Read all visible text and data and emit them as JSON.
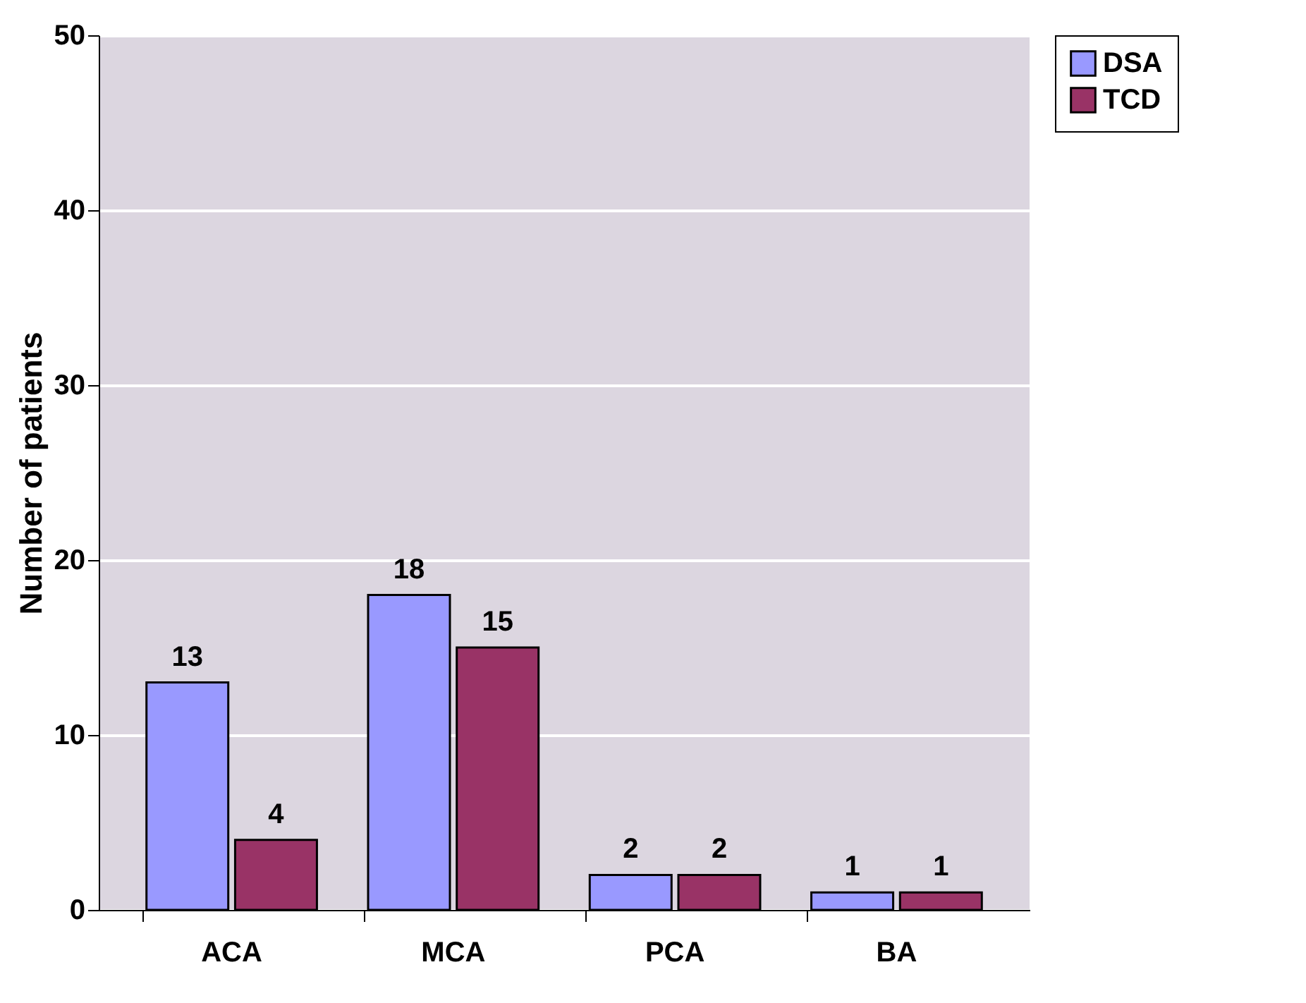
{
  "chart_data": {
    "type": "bar",
    "ylabel": "Number of patients",
    "categories": [
      "ACA",
      "MCA",
      "PCA",
      "BA"
    ],
    "series": [
      {
        "name": "DSA",
        "color": "#9999ff",
        "values": [
          13,
          18,
          2,
          1
        ]
      },
      {
        "name": "TCD",
        "color": "#993366",
        "values": [
          4,
          15,
          2,
          1
        ]
      }
    ],
    "ylim": [
      0,
      50
    ],
    "yticks": [
      0,
      10,
      20,
      30,
      40,
      50
    ],
    "grid": "y",
    "legend": "right",
    "data_labels": true
  }
}
